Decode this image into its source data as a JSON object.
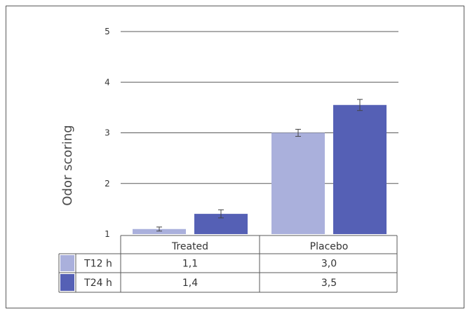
{
  "chart_data": {
    "type": "bar",
    "ylabel": "Odor scoring",
    "xlabel": "",
    "title": "",
    "categories": [
      "Treated",
      "Placebo"
    ],
    "ylim": [
      1,
      5
    ],
    "yticks": [
      1,
      2,
      3,
      4,
      5
    ],
    "grid": true,
    "series": [
      {
        "name": "T12 h",
        "values": [
          1.1,
          3.0
        ],
        "errors": [
          0.04,
          0.07
        ],
        "color": "#aab0dc"
      },
      {
        "name": "T24 h",
        "values": [
          1.4,
          3.55
        ],
        "errors": [
          0.08,
          0.11
        ],
        "color": "#5560b5"
      }
    ],
    "table": {
      "rows": [
        {
          "label": "T12 h",
          "cells": [
            "1,1",
            "3,0"
          ]
        },
        {
          "label": "T24 h",
          "cells": [
            "1,4",
            "3,5"
          ]
        }
      ]
    }
  }
}
